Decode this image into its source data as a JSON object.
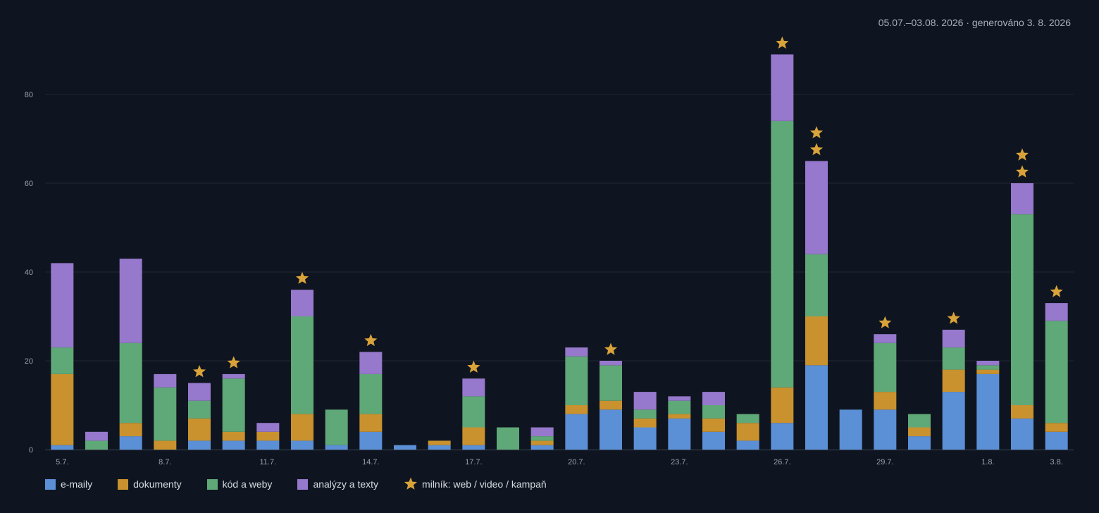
{
  "subtitle": "05.07.–03.08. 2026 · generováno 3. 8. 2026",
  "colors": {
    "background": "#0f1520",
    "grid": "#1f2733",
    "axis": "#3a4350",
    "tick_text": "#9aa1ab",
    "emails": "#5b8fd6",
    "documents": "#c9922e",
    "code": "#5fa877",
    "analyses": "#9678cc",
    "milestone": "#d9a33a"
  },
  "legend": {
    "emails": "e-maily",
    "documents": "dokumenty",
    "code": "kód a weby",
    "analyses": "analýzy a texty",
    "milestone": "milník: web / video / kampaň"
  },
  "chart_data": {
    "type": "bar",
    "stacked": true,
    "categories": [
      "5.7.",
      "6.7.",
      "7.7.",
      "8.7.",
      "9.7.",
      "10.7.",
      "11.7.",
      "12.7.",
      "13.7.",
      "14.7.",
      "15.7.",
      "16.7.",
      "17.7.",
      "18.7.",
      "19.7.",
      "20.7.",
      "21.7.",
      "22.7.",
      "23.7.",
      "24.7.",
      "25.7.",
      "26.7.",
      "27.7.",
      "28.7.",
      "29.7.",
      "30.7.",
      "31.7.",
      "1.8.",
      "2.8.",
      "3.8."
    ],
    "tick_labels": [
      "5.7.",
      "",
      "",
      "8.7.",
      "",
      "",
      "11.7.",
      "",
      "",
      "14.7.",
      "",
      "",
      "17.7.",
      "",
      "",
      "20.7.",
      "",
      "",
      "23.7.",
      "",
      "",
      "26.7.",
      "",
      "",
      "29.7.",
      "",
      "",
      "1.8.",
      "",
      "3.8."
    ],
    "series": [
      {
        "name": "e-maily",
        "color_key": "emails",
        "values": [
          1,
          0,
          3,
          0,
          2,
          2,
          2,
          2,
          1,
          4,
          1,
          1,
          1,
          0,
          1,
          8,
          9,
          5,
          7,
          4,
          2,
          6,
          19,
          9,
          9,
          3,
          13,
          17,
          7,
          4
        ]
      },
      {
        "name": "dokumenty",
        "color_key": "documents",
        "values": [
          16,
          0,
          3,
          2,
          5,
          2,
          2,
          6,
          0,
          4,
          0,
          1,
          4,
          0,
          1,
          2,
          2,
          2,
          1,
          3,
          4,
          8,
          11,
          0,
          4,
          2,
          5,
          1,
          3,
          2
        ]
      },
      {
        "name": "kód a weby",
        "color_key": "code",
        "values": [
          6,
          2,
          18,
          12,
          4,
          12,
          0,
          22,
          8,
          9,
          0,
          0,
          7,
          5,
          1,
          11,
          8,
          2,
          3,
          3,
          2,
          60,
          14,
          0,
          11,
          3,
          5,
          1,
          43,
          23
        ]
      },
      {
        "name": "analýzy a texty",
        "color_key": "analyses",
        "values": [
          19,
          2,
          19,
          3,
          4,
          1,
          2,
          6,
          0,
          5,
          0,
          0,
          4,
          0,
          2,
          2,
          1,
          4,
          1,
          3,
          0,
          15,
          21,
          0,
          2,
          0,
          4,
          1,
          7,
          4
        ]
      }
    ],
    "milestones": [
      0,
      0,
      0,
      0,
      1,
      1,
      0,
      1,
      0,
      1,
      0,
      0,
      1,
      0,
      0,
      0,
      1,
      0,
      0,
      0,
      0,
      1,
      2,
      0,
      1,
      0,
      1,
      0,
      2,
      1
    ],
    "ylim": [
      0,
      90
    ],
    "yticks": [
      0,
      20,
      40,
      60,
      80
    ],
    "grid": true,
    "legend_position": "bottom-left"
  }
}
